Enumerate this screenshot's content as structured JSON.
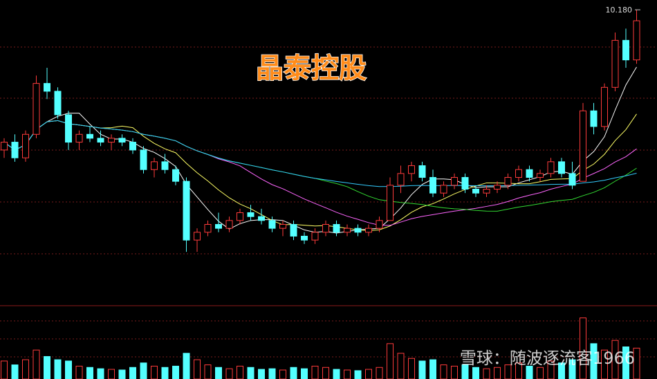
{
  "chart_data": {
    "type": "candlestick",
    "title": "晶泰控股",
    "watermark": "雪球：随波逐流客1966",
    "high_label": {
      "value": 10.18,
      "label": "10.180"
    },
    "up_color": "#ff3b3b",
    "down_color": "#54ffff",
    "ylim": [
      2.66,
      10.43
    ],
    "vlim": [
      0,
      100
    ],
    "candles": [
      [
        6.6,
        6.9,
        6.4,
        6.8
      ],
      [
        6.8,
        7.0,
        6.3,
        6.4
      ],
      [
        6.4,
        7.1,
        6.3,
        7.0
      ],
      [
        7.0,
        8.5,
        6.9,
        8.3
      ],
      [
        8.3,
        8.7,
        7.9,
        8.1
      ],
      [
        8.1,
        8.2,
        7.4,
        7.5
      ],
      [
        7.5,
        7.6,
        6.6,
        6.8
      ],
      [
        6.8,
        7.1,
        6.6,
        7.0
      ],
      [
        7.0,
        7.2,
        6.8,
        6.9
      ],
      [
        6.9,
        7.1,
        6.7,
        6.8
      ],
      [
        6.8,
        7.0,
        6.6,
        6.9
      ],
      [
        6.9,
        7.0,
        6.7,
        6.8
      ],
      [
        6.8,
        6.9,
        6.5,
        6.6
      ],
      [
        6.6,
        6.7,
        6.0,
        6.1
      ],
      [
        6.1,
        6.4,
        5.9,
        6.3
      ],
      [
        6.3,
        6.5,
        6.0,
        6.1
      ],
      [
        6.1,
        6.2,
        5.7,
        5.8
      ],
      [
        5.8,
        5.9,
        4.0,
        4.3
      ],
      [
        4.3,
        4.6,
        4.0,
        4.5
      ],
      [
        4.5,
        4.8,
        4.4,
        4.7
      ],
      [
        4.7,
        5.0,
        4.5,
        4.6
      ],
      [
        4.6,
        4.9,
        4.5,
        4.8
      ],
      [
        4.8,
        5.1,
        4.7,
        5.0
      ],
      [
        5.0,
        5.2,
        4.8,
        4.9
      ],
      [
        4.9,
        5.1,
        4.7,
        4.8
      ],
      [
        4.8,
        4.9,
        4.5,
        4.6
      ],
      [
        4.6,
        4.8,
        4.4,
        4.7
      ],
      [
        4.7,
        4.8,
        4.3,
        4.4
      ],
      [
        4.4,
        4.5,
        4.2,
        4.3
      ],
      [
        4.3,
        4.6,
        4.2,
        4.5
      ],
      [
        4.5,
        4.8,
        4.4,
        4.7
      ],
      [
        4.7,
        4.8,
        4.4,
        4.5
      ],
      [
        4.5,
        4.7,
        4.4,
        4.6
      ],
      [
        4.6,
        4.7,
        4.4,
        4.5
      ],
      [
        4.5,
        4.7,
        4.4,
        4.6
      ],
      [
        4.6,
        4.9,
        4.5,
        4.8
      ],
      [
        4.8,
        5.9,
        4.8,
        5.7
      ],
      [
        5.7,
        6.2,
        5.5,
        6.0
      ],
      [
        6.0,
        6.3,
        5.8,
        6.2
      ],
      [
        6.2,
        6.3,
        5.8,
        5.9
      ],
      [
        5.9,
        6.1,
        5.4,
        5.5
      ],
      [
        5.5,
        5.8,
        5.4,
        5.7
      ],
      [
        5.7,
        6.0,
        5.6,
        5.9
      ],
      [
        5.9,
        6.0,
        5.5,
        5.6
      ],
      [
        5.6,
        5.7,
        5.4,
        5.5
      ],
      [
        5.5,
        5.7,
        5.4,
        5.6
      ],
      [
        5.6,
        5.8,
        5.5,
        5.7
      ],
      [
        5.7,
        6.0,
        5.6,
        5.9
      ],
      [
        5.9,
        6.2,
        5.8,
        6.1
      ],
      [
        6.1,
        6.2,
        5.8,
        5.9
      ],
      [
        5.9,
        6.1,
        5.8,
        6.0
      ],
      [
        6.0,
        6.4,
        5.9,
        6.3
      ],
      [
        6.3,
        6.4,
        5.9,
        6.0
      ],
      [
        6.0,
        6.3,
        5.6,
        5.7
      ],
      [
        5.8,
        7.8,
        5.8,
        7.6
      ],
      [
        7.6,
        7.8,
        7.0,
        7.2
      ],
      [
        7.2,
        8.3,
        7.1,
        8.2
      ],
      [
        8.2,
        9.6,
        8.1,
        9.4
      ],
      [
        9.4,
        9.7,
        8.7,
        8.9
      ],
      [
        8.9,
        10.18,
        8.8,
        9.9
      ]
    ],
    "volumes": [
      28,
      22,
      30,
      45,
      35,
      30,
      28,
      20,
      18,
      16,
      15,
      14,
      18,
      25,
      20,
      18,
      20,
      40,
      30,
      22,
      18,
      16,
      20,
      18,
      15,
      16,
      14,
      18,
      16,
      20,
      18,
      15,
      14,
      13,
      15,
      18,
      55,
      40,
      32,
      28,
      30,
      22,
      20,
      22,
      18,
      16,
      18,
      22,
      25,
      20,
      18,
      28,
      25,
      30,
      95,
      55,
      45,
      60,
      50,
      48
    ],
    "moving_averages": [
      {
        "period": 5,
        "color": "#ffffff"
      },
      {
        "period": 10,
        "color": "#ffff66"
      },
      {
        "period": 20,
        "color": "#ff66ff"
      },
      {
        "period": 30,
        "color": "#33dd33"
      },
      {
        "period": 60,
        "color": "#33ccff"
      }
    ]
  }
}
